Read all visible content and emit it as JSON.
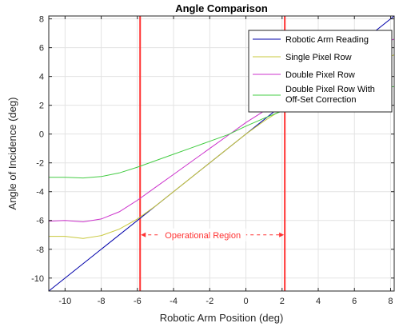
{
  "chart_data": {
    "type": "line",
    "title": "Angle Comparison",
    "xlabel": "Robotic Arm Position (deg)",
    "ylabel": "Angle of Incidence (deg)",
    "xlim": [
      -10.9,
      8.2
    ],
    "ylim": [
      -10.9,
      8.2
    ],
    "xticks": [
      -10,
      -8,
      -6,
      -4,
      -2,
      0,
      2,
      4,
      6,
      8
    ],
    "yticks": [
      -10,
      -8,
      -6,
      -4,
      -2,
      0,
      2,
      4,
      6,
      8
    ],
    "grid": true,
    "legend_position": "top-right",
    "series": [
      {
        "name": "Robotic Arm Reading",
        "color": "#0000aa",
        "x": [
          -10.9,
          8.2
        ],
        "y": [
          -10.9,
          8.2
        ]
      },
      {
        "name": "Single Pixel Row",
        "color": "#c8c83c",
        "x": [
          -10.9,
          -10,
          -9,
          -8,
          -7,
          -6,
          -5,
          -4,
          -3,
          -2,
          -1,
          0,
          1,
          2,
          3,
          4,
          5,
          6,
          7,
          8.2
        ],
        "y": [
          -7.1,
          -7.1,
          -7.25,
          -7.05,
          -6.6,
          -5.9,
          -5.0,
          -4.0,
          -3.0,
          -2.0,
          -1.0,
          0.0,
          0.9,
          1.7,
          2.4,
          3.1,
          3.8,
          4.4,
          4.9,
          5.5
        ]
      },
      {
        "name": "Double Pixel Row",
        "color": "#cc33cc",
        "x": [
          -10.9,
          -10,
          -9,
          -8,
          -7,
          -6,
          -5,
          -4,
          -3,
          -2,
          -1,
          0,
          1,
          2,
          3,
          4,
          5,
          6,
          7,
          8.2
        ],
        "y": [
          -6.05,
          -6.0,
          -6.1,
          -5.9,
          -5.4,
          -4.6,
          -3.7,
          -2.8,
          -1.9,
          -1.0,
          -0.1,
          0.8,
          1.6,
          2.4,
          3.2,
          4.0,
          4.8,
          5.5,
          6.0,
          6.6
        ]
      },
      {
        "name": "Double Pixel Row With Off-Set Correction",
        "legend_lines": [
          "Double Pixel Row With",
          "Off-Set Correction"
        ],
        "color": "#44cc44",
        "x": [
          -10.9,
          -10,
          -9,
          -8,
          -7,
          -6,
          -5,
          -4,
          -3,
          -2,
          -1,
          0,
          1,
          2,
          3,
          4,
          5,
          6,
          7,
          8.2
        ],
        "y": [
          -3.0,
          -3.0,
          -3.05,
          -2.95,
          -2.7,
          -2.3,
          -1.85,
          -1.4,
          -0.95,
          -0.5,
          -0.05,
          0.55,
          1.1,
          1.6,
          2.0,
          2.4,
          2.7,
          2.9,
          3.1,
          3.3
        ]
      }
    ],
    "vlines": {
      "x": [
        -5.85,
        2.15
      ],
      "color": "#ff3333"
    },
    "annotation": {
      "text": "Operational Region",
      "y": -7.0,
      "x_from": -5.85,
      "x_to": 2.15,
      "color": "#ff3333"
    }
  }
}
